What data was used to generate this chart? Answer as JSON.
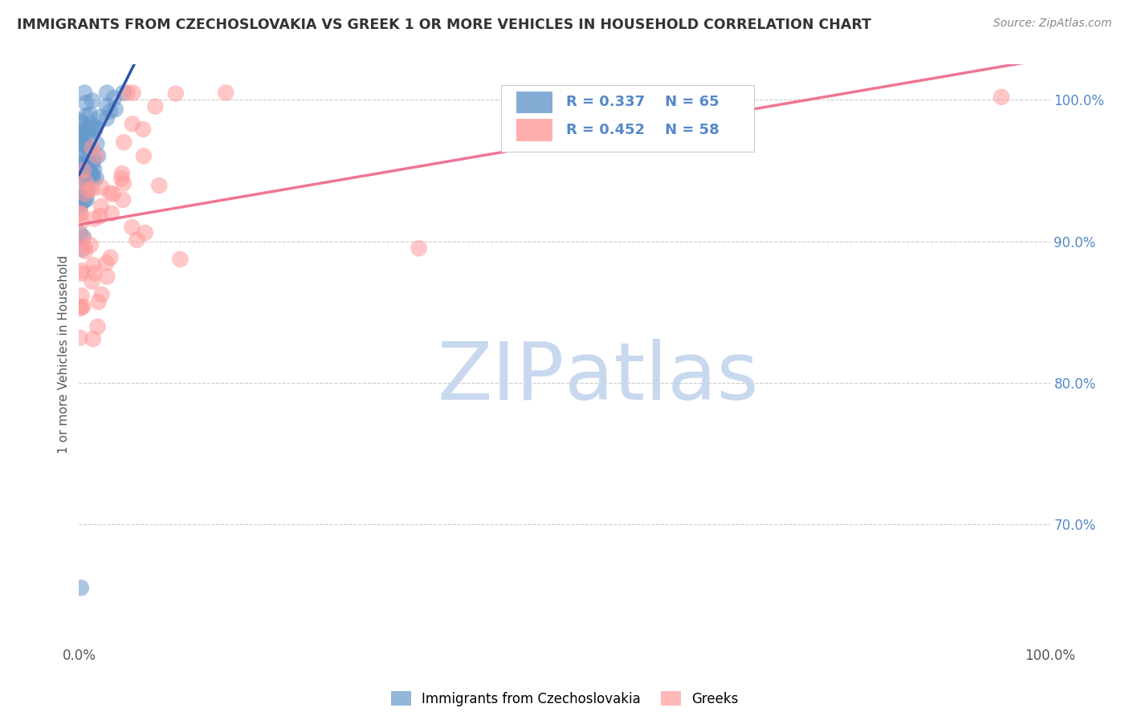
{
  "title": "IMMIGRANTS FROM CZECHOSLOVAKIA VS GREEK 1 OR MORE VEHICLES IN HOUSEHOLD CORRELATION CHART",
  "source": "Source: ZipAtlas.com",
  "ylabel": "1 or more Vehicles in Household",
  "R1": 0.337,
  "N1": 65,
  "R2": 0.452,
  "N2": 58,
  "color1": "#6699CC",
  "color2": "#FF9999",
  "trendline1_color": "#3355AA",
  "trendline2_color": "#EE6688",
  "legend_label1": "Immigrants from Czechoslovakia",
  "legend_label2": "Greeks",
  "background_color": "#FFFFFF",
  "watermark_text": "ZIPatlas",
  "watermark_color": "#C8D8EE",
  "grid_color": "#CCCCCC",
  "ytick_color": "#5588CC",
  "title_color": "#333333",
  "source_color": "#888888",
  "xlim": [
    0.0,
    1.0
  ],
  "ylim": [
    0.615,
    1.025
  ],
  "yticks": [
    0.7,
    0.8,
    0.9,
    1.0
  ],
  "ytick_labels": [
    "70.0%",
    "80.0%",
    "90.0%",
    "100.0%"
  ],
  "xticks": [
    0.0,
    1.0
  ],
  "xtick_labels": [
    "0.0%",
    "100.0%"
  ]
}
